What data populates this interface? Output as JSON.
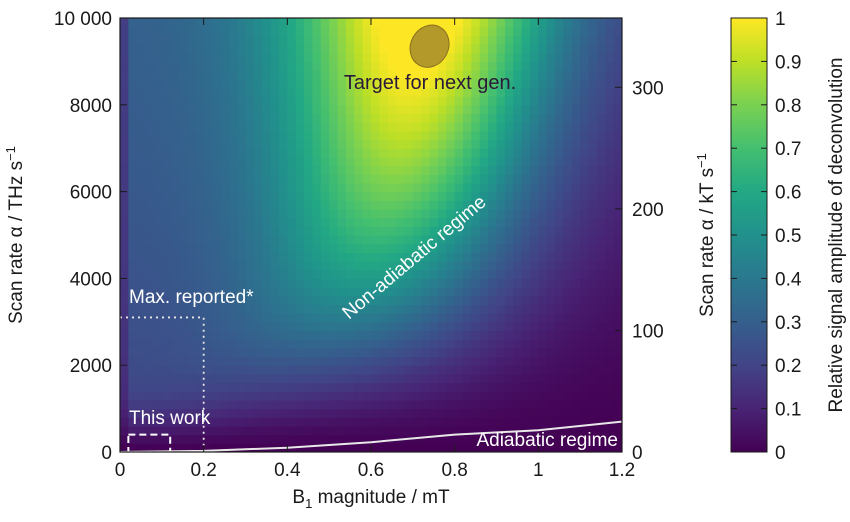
{
  "chart_data": {
    "type": "heatmap",
    "colormap": "viridis",
    "xlabel": "B",
    "xlabel_sub": "1",
    "xlabel_rest": " magnitude / mT",
    "ylabel": "Scan rate α / THz s",
    "ylabel_sup": "−1",
    "y2label": "Scan rate α / kT s",
    "y2label_sup": "−1",
    "colorbar_label": "Relative signal amplitude of deconvolution",
    "xlim": [
      0,
      1.2
    ],
    "ylim": [
      0,
      10000
    ],
    "y2lim": [
      0,
      357
    ],
    "clim": [
      0,
      1
    ],
    "x_ticks": [
      "0",
      "0.2",
      "0.4",
      "0.6",
      "0.8",
      "1",
      "1.2"
    ],
    "x_tick_values": [
      0,
      0.2,
      0.4,
      0.6,
      0.8,
      1.0,
      1.2
    ],
    "y_ticks": [
      "0",
      "2000",
      "4000",
      "6000",
      "8000",
      "10 000"
    ],
    "y_tick_values": [
      0,
      2000,
      4000,
      6000,
      8000,
      10000
    ],
    "y2_ticks": [
      "0",
      "100",
      "200",
      "300"
    ],
    "y2_tick_values": [
      0,
      100,
      200,
      300
    ],
    "colorbar_ticks": [
      "0",
      "0.1",
      "0.2",
      "0.3",
      "0.4",
      "0.5",
      "0.6",
      "0.7",
      "0.8",
      "0.9",
      "1"
    ],
    "colorbar_tick_values": [
      0,
      0.1,
      0.2,
      0.3,
      0.4,
      0.5,
      0.6,
      0.7,
      0.8,
      0.9,
      1.0
    ],
    "adiabatic_curve": {
      "x": [
        0,
        0.2,
        0.4,
        0.6,
        0.8,
        1.0,
        1.2
      ],
      "y": [
        0,
        25,
        100,
        225,
        400,
        500,
        700
      ]
    },
    "max_reported_box": {
      "x": [
        0,
        0.2
      ],
      "y": [
        0,
        3100
      ]
    },
    "this_work_box": {
      "x": [
        0.02,
        0.12
      ],
      "y": [
        0,
        400
      ]
    },
    "target_ellipse": {
      "cx": 0.74,
      "cy": 9350,
      "rx": 0.045,
      "ry": 500
    },
    "annotations": {
      "target": "Target for next gen.",
      "non_adiabatic": "Non-adiabatic regime",
      "adiabatic": "Adiabatic regime",
      "max_reported": "Max. reported*",
      "this_work": "This work"
    }
  }
}
